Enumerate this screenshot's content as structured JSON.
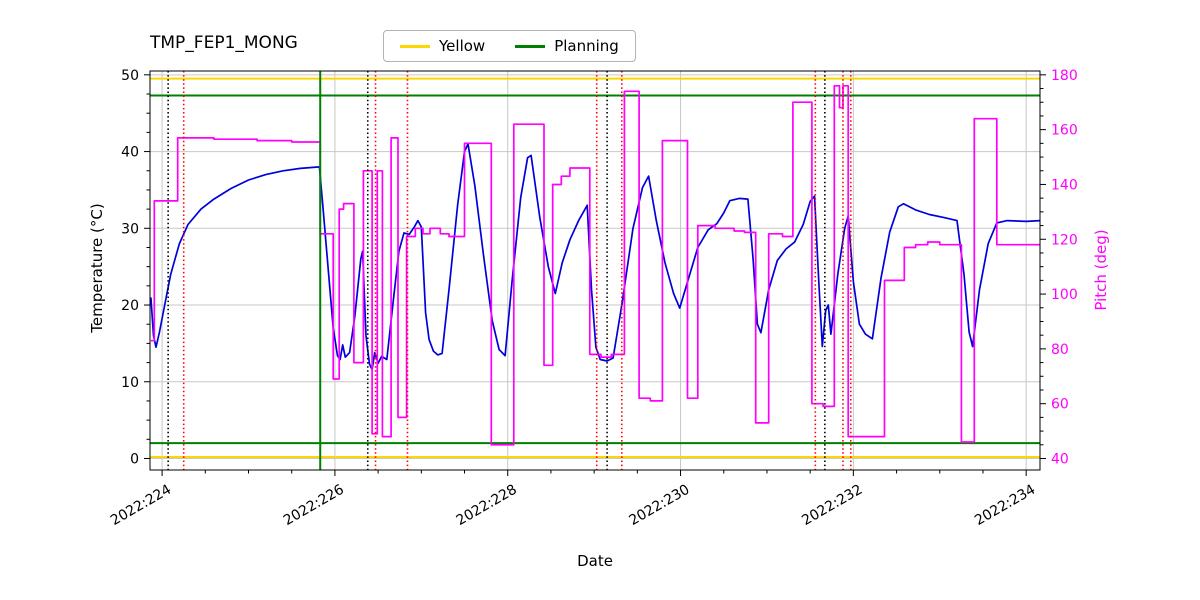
{
  "title": "TMP_FEP1_MONG",
  "legend": {
    "items": [
      {
        "label": "Yellow",
        "color": "#ffd700"
      },
      {
        "label": "Planning",
        "color": "#008000"
      }
    ]
  },
  "axes": {
    "x": {
      "label": "Date",
      "range": [
        223.86,
        234.16
      ],
      "tick_values": [
        224,
        226,
        228,
        230,
        232,
        234
      ],
      "ticks": [
        "2022:224",
        "2022:226",
        "2022:228",
        "2022:230",
        "2022:232",
        "2022:234"
      ],
      "minor_step": 0.5
    },
    "y_left": {
      "label": "Temperature (°C)",
      "range": [
        -1.5,
        50.5
      ],
      "tick_values": [
        0,
        10,
        20,
        30,
        40,
        50
      ],
      "color": "#000000"
    },
    "y_right": {
      "label": "Pitch (deg)",
      "range": [
        35.8,
        181.4
      ],
      "tick_values": [
        40,
        60,
        80,
        100,
        120,
        140,
        160,
        180
      ],
      "color": "#ff00ff"
    }
  },
  "chart_data": {
    "type": "line",
    "grid": true,
    "series": [
      {
        "name": "temperature",
        "axis": "left",
        "mode": "linear",
        "color": "#0000dd",
        "points": [
          [
            223.87,
            21
          ],
          [
            223.9,
            16
          ],
          [
            223.93,
            14.5
          ],
          [
            223.97,
            16.5
          ],
          [
            224.03,
            20
          ],
          [
            224.1,
            24
          ],
          [
            224.2,
            28
          ],
          [
            224.3,
            30.5
          ],
          [
            224.45,
            32.5
          ],
          [
            224.6,
            33.8
          ],
          [
            224.8,
            35.2
          ],
          [
            225.0,
            36.3
          ],
          [
            225.2,
            37
          ],
          [
            225.4,
            37.5
          ],
          [
            225.6,
            37.8
          ],
          [
            225.82,
            38
          ],
          [
            225.86,
            33
          ],
          [
            225.92,
            25
          ],
          [
            225.98,
            17
          ],
          [
            226.03,
            13.4
          ],
          [
            226.06,
            12.9
          ],
          [
            226.09,
            14.8
          ],
          [
            226.12,
            13.2
          ],
          [
            226.17,
            13.8
          ],
          [
            226.23,
            18.5
          ],
          [
            226.3,
            26
          ],
          [
            226.32,
            27
          ],
          [
            226.36,
            16
          ],
          [
            226.4,
            12.3
          ],
          [
            226.43,
            11.6
          ],
          [
            226.46,
            13.8
          ],
          [
            226.5,
            12.4
          ],
          [
            226.54,
            13.3
          ],
          [
            226.6,
            12.9
          ],
          [
            226.67,
            20
          ],
          [
            226.74,
            27
          ],
          [
            226.8,
            29.4
          ],
          [
            226.86,
            29.2
          ],
          [
            226.92,
            30.2
          ],
          [
            226.96,
            31
          ],
          [
            227.0,
            30.2
          ],
          [
            227.05,
            19
          ],
          [
            227.09,
            15.5
          ],
          [
            227.14,
            14
          ],
          [
            227.19,
            13.5
          ],
          [
            227.24,
            13.7
          ],
          [
            227.32,
            22
          ],
          [
            227.42,
            33
          ],
          [
            227.5,
            40
          ],
          [
            227.54,
            41
          ],
          [
            227.62,
            35.5
          ],
          [
            227.72,
            26.5
          ],
          [
            227.82,
            18
          ],
          [
            227.9,
            14.2
          ],
          [
            227.97,
            13.4
          ],
          [
            228.05,
            23
          ],
          [
            228.15,
            34
          ],
          [
            228.23,
            39.2
          ],
          [
            228.27,
            39.5
          ],
          [
            228.37,
            31.5
          ],
          [
            228.47,
            25
          ],
          [
            228.55,
            21.5
          ],
          [
            228.63,
            25.5
          ],
          [
            228.72,
            28.5
          ],
          [
            228.82,
            31
          ],
          [
            228.92,
            33
          ],
          [
            228.97,
            22
          ],
          [
            229.02,
            14.5
          ],
          [
            229.07,
            12.9
          ],
          [
            229.15,
            12.7
          ],
          [
            229.22,
            13.1
          ],
          [
            229.32,
            20
          ],
          [
            229.45,
            30
          ],
          [
            229.56,
            35.3
          ],
          [
            229.63,
            36.8
          ],
          [
            229.72,
            31
          ],
          [
            229.82,
            25.5
          ],
          [
            229.92,
            21.5
          ],
          [
            229.99,
            19.6
          ],
          [
            230.08,
            23
          ],
          [
            230.2,
            27.5
          ],
          [
            230.32,
            29.8
          ],
          [
            230.42,
            30.6
          ],
          [
            230.5,
            32
          ],
          [
            230.57,
            33.6
          ],
          [
            230.68,
            33.9
          ],
          [
            230.78,
            33.8
          ],
          [
            230.84,
            26
          ],
          [
            230.89,
            17.5
          ],
          [
            230.93,
            16.4
          ],
          [
            231.02,
            22
          ],
          [
            231.12,
            25.8
          ],
          [
            231.22,
            27.3
          ],
          [
            231.32,
            28.2
          ],
          [
            231.42,
            30.5
          ],
          [
            231.5,
            33.5
          ],
          [
            231.55,
            34.2
          ],
          [
            231.6,
            23
          ],
          [
            231.64,
            14.6
          ],
          [
            231.68,
            19.3
          ],
          [
            231.71,
            20
          ],
          [
            231.74,
            16.2
          ],
          [
            231.82,
            24
          ],
          [
            231.9,
            30
          ],
          [
            231.94,
            31.6
          ],
          [
            232.0,
            23
          ],
          [
            232.07,
            17.5
          ],
          [
            232.14,
            16.2
          ],
          [
            232.22,
            15.6
          ],
          [
            232.32,
            23.5
          ],
          [
            232.42,
            29.5
          ],
          [
            232.52,
            32.8
          ],
          [
            232.58,
            33.2
          ],
          [
            232.72,
            32.4
          ],
          [
            232.88,
            31.8
          ],
          [
            233.05,
            31.4
          ],
          [
            233.2,
            31
          ],
          [
            233.28,
            24
          ],
          [
            233.34,
            16.5
          ],
          [
            233.38,
            14.6
          ],
          [
            233.46,
            22
          ],
          [
            233.56,
            28
          ],
          [
            233.66,
            30.7
          ],
          [
            233.78,
            31
          ],
          [
            234.0,
            30.9
          ],
          [
            234.16,
            31
          ]
        ]
      },
      {
        "name": "pitch",
        "axis": "right",
        "mode": "step",
        "color": "#ff00ff",
        "points": [
          [
            223.87,
            83
          ],
          [
            223.91,
            134
          ],
          [
            224.18,
            157
          ],
          [
            224.6,
            156.5
          ],
          [
            225.1,
            156
          ],
          [
            225.5,
            155.5
          ],
          [
            225.83,
            122
          ],
          [
            225.98,
            69
          ],
          [
            226.05,
            131
          ],
          [
            226.1,
            133
          ],
          [
            226.22,
            75
          ],
          [
            226.33,
            145
          ],
          [
            226.43,
            49
          ],
          [
            226.49,
            145
          ],
          [
            226.55,
            48
          ],
          [
            226.65,
            157
          ],
          [
            226.73,
            55
          ],
          [
            226.83,
            121
          ],
          [
            226.93,
            124
          ],
          [
            227.02,
            122
          ],
          [
            227.1,
            124
          ],
          [
            227.22,
            122
          ],
          [
            227.32,
            121
          ],
          [
            227.5,
            155
          ],
          [
            227.81,
            45
          ],
          [
            228.07,
            162
          ],
          [
            228.42,
            74
          ],
          [
            228.52,
            140
          ],
          [
            228.62,
            143
          ],
          [
            228.72,
            146
          ],
          [
            228.95,
            78
          ],
          [
            229.08,
            77
          ],
          [
            229.2,
            78
          ],
          [
            229.35,
            174
          ],
          [
            229.52,
            62
          ],
          [
            229.65,
            61
          ],
          [
            229.79,
            156
          ],
          [
            230.08,
            62
          ],
          [
            230.2,
            125
          ],
          [
            230.4,
            124
          ],
          [
            230.62,
            123
          ],
          [
            230.74,
            122.5
          ],
          [
            230.87,
            53
          ],
          [
            231.02,
            122
          ],
          [
            231.18,
            121
          ],
          [
            231.3,
            170
          ],
          [
            231.52,
            60
          ],
          [
            231.65,
            59
          ],
          [
            231.78,
            176
          ],
          [
            231.84,
            168
          ],
          [
            231.88,
            176
          ],
          [
            231.94,
            48
          ],
          [
            232.36,
            105
          ],
          [
            232.59,
            117
          ],
          [
            232.72,
            118
          ],
          [
            232.86,
            119
          ],
          [
            233.0,
            118
          ],
          [
            233.25,
            46
          ],
          [
            233.4,
            164
          ],
          [
            233.66,
            118
          ],
          [
            234.16,
            118
          ]
        ]
      }
    ],
    "hlines": [
      {
        "name": "yellow-upper-limit",
        "axis": "left",
        "y": 49.5,
        "color": "#ffd700",
        "style": "solid"
      },
      {
        "name": "yellow-lower-limit",
        "axis": "left",
        "y": 0.2,
        "color": "#ffd700",
        "style": "solid"
      },
      {
        "name": "planning-upper-limit",
        "axis": "left",
        "y": 47.3,
        "color": "#008000",
        "style": "solid"
      },
      {
        "name": "planning-lower-limit",
        "axis": "left",
        "y": 2.0,
        "color": "#008000",
        "style": "solid"
      }
    ],
    "vlines": [
      {
        "name": "event-black",
        "x": 224.07,
        "color": "#000000",
        "style": "dotted"
      },
      {
        "name": "event-black",
        "x": 226.38,
        "color": "#000000",
        "style": "dotted"
      },
      {
        "name": "event-black",
        "x": 229.15,
        "color": "#000000",
        "style": "dotted"
      },
      {
        "name": "event-black",
        "x": 231.67,
        "color": "#000000",
        "style": "dotted"
      },
      {
        "name": "event-red",
        "x": 224.25,
        "color": "#ff0000",
        "style": "dotted"
      },
      {
        "name": "event-red",
        "x": 226.47,
        "color": "#ff0000",
        "style": "dotted"
      },
      {
        "name": "event-red",
        "x": 226.84,
        "color": "#ff0000",
        "style": "dotted"
      },
      {
        "name": "event-red",
        "x": 229.03,
        "color": "#ff0000",
        "style": "dotted"
      },
      {
        "name": "event-red",
        "x": 229.32,
        "color": "#ff0000",
        "style": "dotted"
      },
      {
        "name": "event-red",
        "x": 231.56,
        "color": "#ff0000",
        "style": "dotted"
      },
      {
        "name": "event-red",
        "x": 231.88,
        "color": "#ff0000",
        "style": "dotted"
      },
      {
        "name": "event-red",
        "x": 231.97,
        "color": "#ff0000",
        "style": "dotted"
      },
      {
        "name": "planning-boundary",
        "x": 225.83,
        "color": "#008000",
        "style": "solid"
      }
    ]
  }
}
